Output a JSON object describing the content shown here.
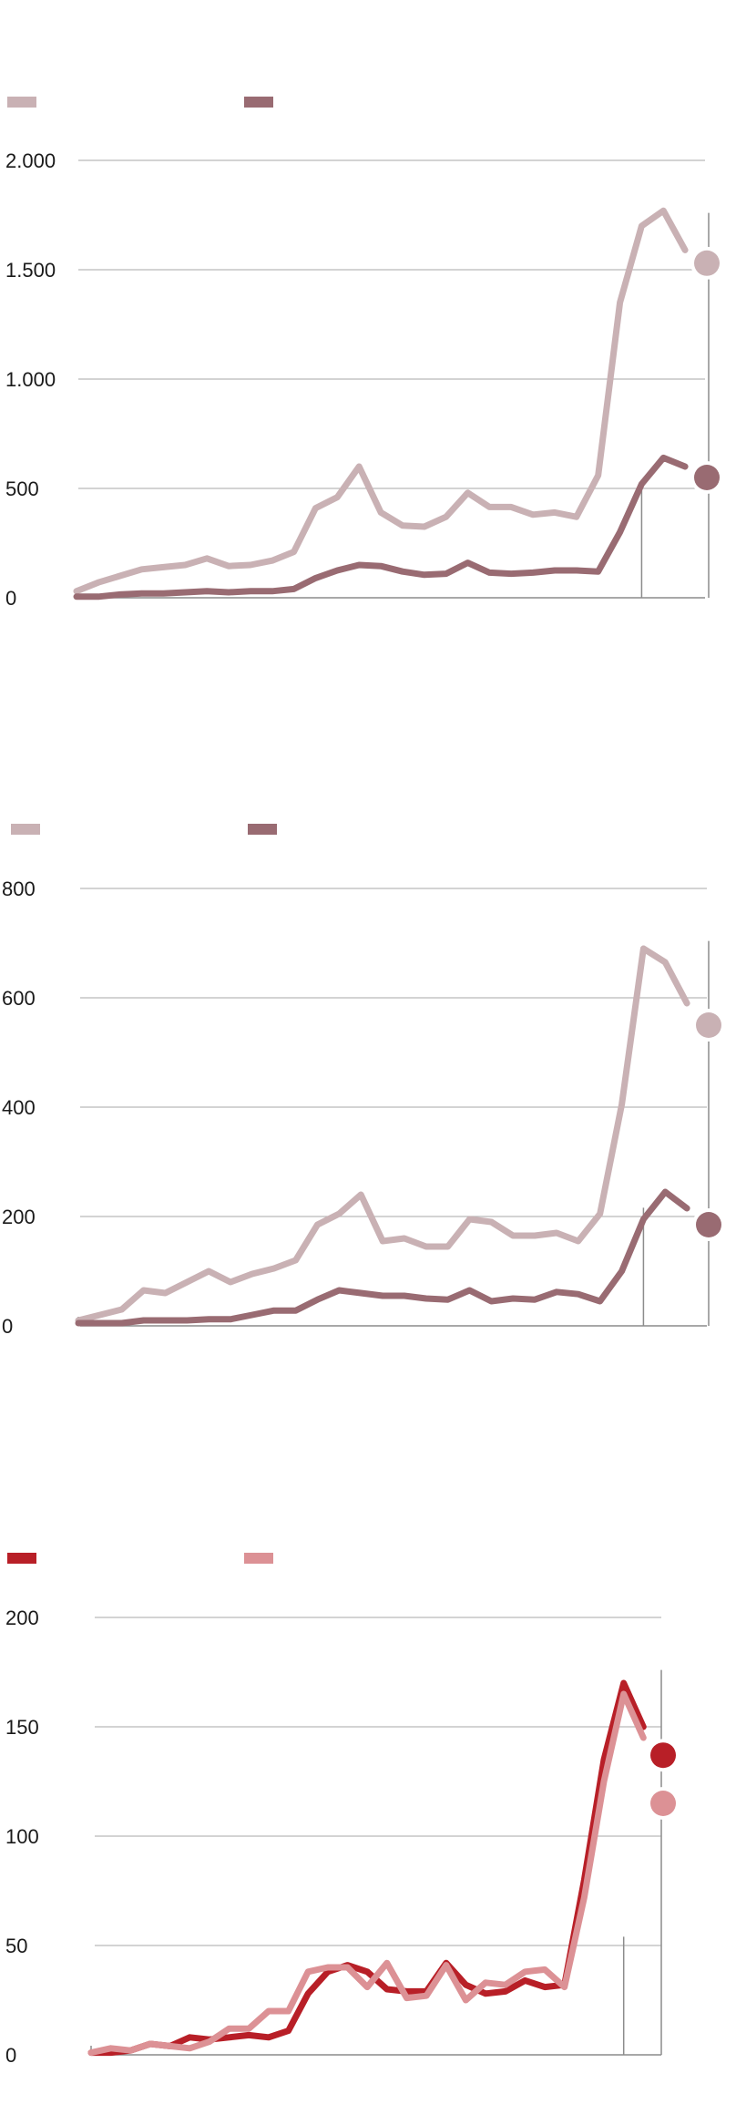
{
  "chart_data": [
    {
      "type": "line",
      "x": [
        1,
        2,
        3,
        4,
        5,
        6,
        7,
        8,
        9,
        10,
        11,
        12,
        13,
        14,
        15,
        16,
        17,
        18,
        19,
        20,
        21,
        22,
        23,
        24,
        25,
        26,
        27,
        28,
        29,
        30
      ],
      "marker_x": 27,
      "series": [
        {
          "name": "",
          "color": "#c9b1b4",
          "values": [
            30,
            70,
            100,
            130,
            140,
            150,
            180,
            145,
            150,
            170,
            210,
            410,
            460,
            600,
            390,
            330,
            325,
            370,
            480,
            415,
            415,
            380,
            390,
            370,
            560,
            1350,
            1700,
            1770,
            1590,
            1530
          ]
        },
        {
          "name": "",
          "color": "#996b72",
          "values": [
            5,
            5,
            15,
            20,
            20,
            25,
            30,
            25,
            30,
            30,
            40,
            90,
            125,
            150,
            145,
            120,
            105,
            110,
            160,
            115,
            110,
            115,
            125,
            125,
            120,
            300,
            520,
            640,
            600,
            550
          ]
        }
      ],
      "ylim": [
        0,
        2000
      ],
      "yticks": [
        0,
        500,
        1000,
        1500,
        2000
      ],
      "ytick_labels": [
        "0",
        "500",
        "1.000",
        "1.500",
        "2.000"
      ],
      "grid": true,
      "legend": "top-left"
    },
    {
      "type": "line",
      "x": [
        1,
        2,
        3,
        4,
        5,
        6,
        7,
        8,
        9,
        10,
        11,
        12,
        13,
        14,
        15,
        16,
        17,
        18,
        19,
        20,
        21,
        22,
        23,
        24,
        25,
        26,
        27,
        28,
        29,
        30
      ],
      "marker_x": 27,
      "series": [
        {
          "name": "",
          "color": "#c9b1b4",
          "values": [
            10,
            20,
            30,
            65,
            60,
            80,
            100,
            80,
            95,
            105,
            120,
            185,
            205,
            240,
            155,
            160,
            145,
            145,
            195,
            190,
            165,
            165,
            170,
            155,
            205,
            405,
            690,
            665,
            590,
            550
          ]
        },
        {
          "name": "",
          "color": "#996b72",
          "values": [
            5,
            5,
            5,
            10,
            10,
            10,
            12,
            12,
            20,
            28,
            28,
            48,
            65,
            60,
            55,
            55,
            50,
            48,
            65,
            45,
            50,
            48,
            62,
            58,
            45,
            100,
            195,
            245,
            215,
            185
          ]
        }
      ],
      "ylim": [
        0,
        800
      ],
      "yticks": [
        0,
        200,
        400,
        600,
        800
      ],
      "ytick_labels": [
        "0",
        "200",
        "400",
        "600",
        "800"
      ],
      "grid": true,
      "legend": "top-left"
    },
    {
      "type": "line",
      "x": [
        1,
        2,
        3,
        4,
        5,
        6,
        7,
        8,
        9,
        10,
        11,
        12,
        13,
        14,
        15,
        16,
        17,
        18,
        19,
        20,
        21,
        22,
        23,
        24,
        25,
        26,
        27,
        28,
        29,
        30
      ],
      "marker_x": 28,
      "series": [
        {
          "name": "",
          "color": "#b81f27",
          "values": [
            1,
            1,
            2,
            5,
            4,
            8,
            7,
            8,
            9,
            8,
            11,
            28,
            38,
            41,
            38,
            30,
            29,
            29,
            42,
            32,
            28,
            29,
            34,
            31,
            32,
            80,
            135,
            170,
            150,
            137
          ]
        },
        {
          "name": "",
          "color": "#dc9195",
          "values": [
            1,
            3,
            2,
            5,
            4,
            3,
            6,
            12,
            12,
            20,
            20,
            38,
            40,
            40,
            31,
            42,
            26,
            27,
            41,
            25,
            33,
            32,
            38,
            39,
            31,
            72,
            125,
            165,
            145,
            115
          ]
        }
      ],
      "ylim": [
        0,
        200
      ],
      "yticks": [
        0,
        50,
        100,
        150,
        200
      ],
      "ytick_labels": [
        "0",
        "50",
        "100",
        "150",
        "200"
      ],
      "grid": true,
      "legend": "top-left"
    }
  ]
}
